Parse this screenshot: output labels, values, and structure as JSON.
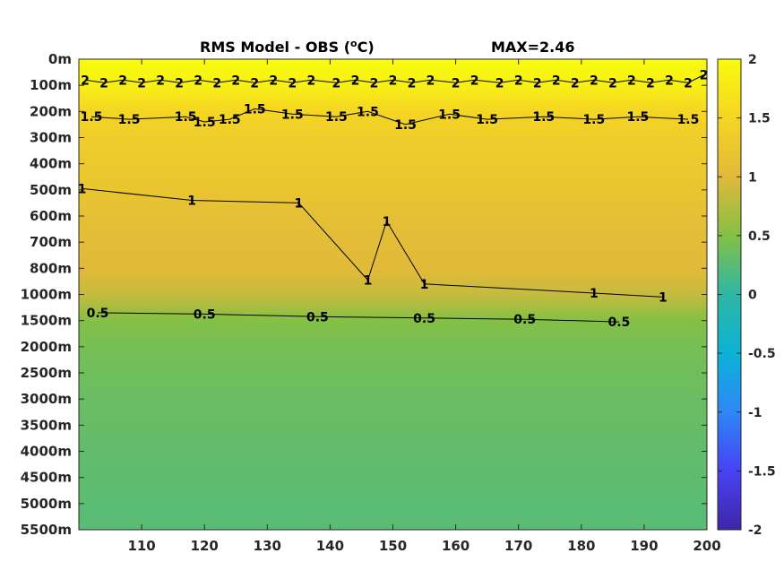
{
  "chart_data": {
    "type": "heatmap",
    "title": "RMS Model - OBS (",
    "title_unit_sup": "o",
    "title_unit_tail": "C)",
    "max_label": "MAX=2.46",
    "xlim": [
      100,
      200
    ],
    "x_ticks": [
      110,
      120,
      130,
      140,
      150,
      160,
      170,
      180,
      190,
      200
    ],
    "y_tick_labels": [
      "0m",
      "100m",
      "200m",
      "300m",
      "400m",
      "500m",
      "600m",
      "700m",
      "800m",
      "1000m",
      "1500m",
      "2000m",
      "2500m",
      "3000m",
      "3500m",
      "4000m",
      "4500m",
      "5000m",
      "5500m"
    ],
    "colorbar": {
      "range": [
        -2,
        2
      ],
      "ticks": [
        "2",
        "1.5",
        "1",
        "0.5",
        "0",
        "-0.5",
        "-1",
        "-1.5",
        "-2"
      ],
      "colormap": "parula",
      "colors": [
        "#3e26a8",
        "#4743f4",
        "#2e87f7",
        "#0cb2d6",
        "#2eb7a4",
        "#84c046",
        "#e1b93a",
        "#f5d524",
        "#f9fb0e"
      ]
    },
    "depth_profile": [
      {
        "depth": "0m",
        "value": 2.0
      },
      {
        "depth": "100m",
        "value": 1.85
      },
      {
        "depth": "200m",
        "value": 1.5
      },
      {
        "depth": "300m",
        "value": 1.35
      },
      {
        "depth": "400m",
        "value": 1.28
      },
      {
        "depth": "500m",
        "value": 1.22
      },
      {
        "depth": "600m",
        "value": 1.1
      },
      {
        "depth": "700m",
        "value": 1.05
      },
      {
        "depth": "800m",
        "value": 1.02
      },
      {
        "depth": "1000m",
        "value": 0.85
      },
      {
        "depth": "1500m",
        "value": 0.5
      },
      {
        "depth": "2000m",
        "value": 0.42
      },
      {
        "depth": "2500m",
        "value": 0.38
      },
      {
        "depth": "3000m",
        "value": 0.35
      },
      {
        "depth": "3500m",
        "value": 0.33
      },
      {
        "depth": "4000m",
        "value": 0.3
      },
      {
        "depth": "4500m",
        "value": 0.28
      },
      {
        "depth": "5000m",
        "value": 0.26
      },
      {
        "depth": "5500m",
        "value": 0.25
      }
    ],
    "contours": [
      {
        "level": "2",
        "labels": [
          {
            "x": 101,
            "depth_index": 0.8
          },
          {
            "x": 104,
            "depth_index": 0.9
          },
          {
            "x": 107,
            "depth_index": 0.8
          },
          {
            "x": 110,
            "depth_index": 0.9
          },
          {
            "x": 113,
            "depth_index": 0.8
          },
          {
            "x": 116,
            "depth_index": 0.9
          },
          {
            "x": 119,
            "depth_index": 0.8
          },
          {
            "x": 122,
            "depth_index": 0.9
          },
          {
            "x": 125,
            "depth_index": 0.8
          },
          {
            "x": 128,
            "depth_index": 0.9
          },
          {
            "x": 131,
            "depth_index": 0.8
          },
          {
            "x": 134,
            "depth_index": 0.9
          },
          {
            "x": 137,
            "depth_index": 0.8
          },
          {
            "x": 141,
            "depth_index": 0.9
          },
          {
            "x": 144,
            "depth_index": 0.8
          },
          {
            "x": 147,
            "depth_index": 0.9
          },
          {
            "x": 150,
            "depth_index": 0.8
          },
          {
            "x": 153,
            "depth_index": 0.9
          },
          {
            "x": 156,
            "depth_index": 0.8
          },
          {
            "x": 160,
            "depth_index": 0.9
          },
          {
            "x": 163,
            "depth_index": 0.8
          },
          {
            "x": 167,
            "depth_index": 0.9
          },
          {
            "x": 170,
            "depth_index": 0.8
          },
          {
            "x": 173,
            "depth_index": 0.9
          },
          {
            "x": 176,
            "depth_index": 0.8
          },
          {
            "x": 179,
            "depth_index": 0.9
          },
          {
            "x": 182,
            "depth_index": 0.8
          },
          {
            "x": 185,
            "depth_index": 0.9
          },
          {
            "x": 188,
            "depth_index": 0.8
          },
          {
            "x": 191,
            "depth_index": 0.9
          },
          {
            "x": 194,
            "depth_index": 0.8
          },
          {
            "x": 197,
            "depth_index": 0.9
          },
          {
            "x": 199.5,
            "depth_index": 0.6
          }
        ]
      },
      {
        "level": "1.5",
        "labels": [
          {
            "x": 102,
            "depth_index": 2.2
          },
          {
            "x": 108,
            "depth_index": 2.3
          },
          {
            "x": 117,
            "depth_index": 2.2
          },
          {
            "x": 120,
            "depth_index": 2.4
          },
          {
            "x": 124,
            "depth_index": 2.3
          },
          {
            "x": 128,
            "depth_index": 1.9
          },
          {
            "x": 134,
            "depth_index": 2.1
          },
          {
            "x": 141,
            "depth_index": 2.2
          },
          {
            "x": 146,
            "depth_index": 2.0
          },
          {
            "x": 152,
            "depth_index": 2.5
          },
          {
            "x": 159,
            "depth_index": 2.1
          },
          {
            "x": 165,
            "depth_index": 2.3
          },
          {
            "x": 174,
            "depth_index": 2.2
          },
          {
            "x": 182,
            "depth_index": 2.3
          },
          {
            "x": 189,
            "depth_index": 2.2
          },
          {
            "x": 197,
            "depth_index": 2.3
          }
        ]
      },
      {
        "level": "1",
        "labels": [
          {
            "x": 100.5,
            "depth_index": 4.95
          },
          {
            "x": 118,
            "depth_index": 5.4
          },
          {
            "x": 135,
            "depth_index": 5.5
          },
          {
            "x": 149,
            "depth_index": 6.2
          },
          {
            "x": 146,
            "depth_index": 8.45
          },
          {
            "x": 155,
            "depth_index": 8.6
          },
          {
            "x": 182,
            "depth_index": 8.95
          },
          {
            "x": 193,
            "depth_index": 9.1
          }
        ]
      },
      {
        "level": "0.5",
        "labels": [
          {
            "x": 103,
            "depth_index": 9.7
          },
          {
            "x": 120,
            "depth_index": 9.75
          },
          {
            "x": 138,
            "depth_index": 9.85
          },
          {
            "x": 155,
            "depth_index": 9.9
          },
          {
            "x": 171,
            "depth_index": 9.95
          },
          {
            "x": 186,
            "depth_index": 10.05
          }
        ]
      }
    ]
  }
}
